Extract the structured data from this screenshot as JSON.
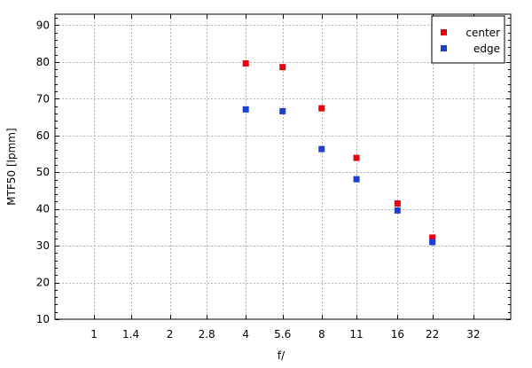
{
  "chart_data": {
    "type": "scatter",
    "title": "",
    "xlabel": "f/",
    "ylabel": "MTF50 [lpmm]",
    "x_scale": "log2",
    "x_ticks": [
      "1",
      "1.4",
      "2",
      "2.8",
      "4",
      "5.6",
      "8",
      "11",
      "16",
      "22",
      "32"
    ],
    "x_tick_values": [
      1,
      1.4,
      2,
      2.8,
      4,
      5.6,
      8,
      11,
      16,
      22,
      32
    ],
    "xlim": [
      0.7,
      45
    ],
    "ylim": [
      10,
      93
    ],
    "y_ticks": [
      "10",
      "20",
      "30",
      "40",
      "50",
      "60",
      "70",
      "80",
      "90"
    ],
    "y_tick_values": [
      10,
      20,
      30,
      40,
      50,
      60,
      70,
      80,
      90
    ],
    "y_minor_step": 2,
    "grid": true,
    "legend": "top-right",
    "series": [
      {
        "name": "center",
        "color": "#e8000b",
        "x": [
          4,
          5.6,
          8,
          11,
          16,
          22
        ],
        "y": [
          79.6,
          78.6,
          67.4,
          53.9,
          41.5,
          32.2
        ]
      },
      {
        "name": "edge",
        "color": "#1a3ed6",
        "x": [
          4,
          5.6,
          8,
          11,
          16,
          22
        ],
        "y": [
          67.1,
          66.6,
          56.3,
          48.1,
          39.6,
          31.0
        ]
      }
    ]
  }
}
